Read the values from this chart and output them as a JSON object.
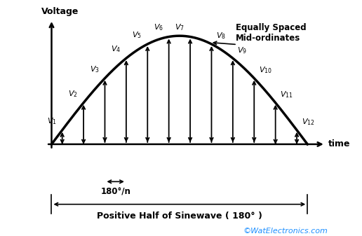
{
  "ylabel": "Voltage",
  "xlabel": "time",
  "n_ordinates": 12,
  "sine_color": "#000000",
  "arrow_color": "#000000",
  "background_color": "#ffffff",
  "label_180n": "180°/n",
  "label_positive_half": "Positive Half of Sinewave ( 180° )",
  "label_equally_spaced": "Equally Spaced\nMid-ordinates",
  "watermark": "©WatElectronics.com",
  "watermark_color": "#1E90FF",
  "figsize": [
    5.16,
    3.37
  ],
  "dpi": 100
}
